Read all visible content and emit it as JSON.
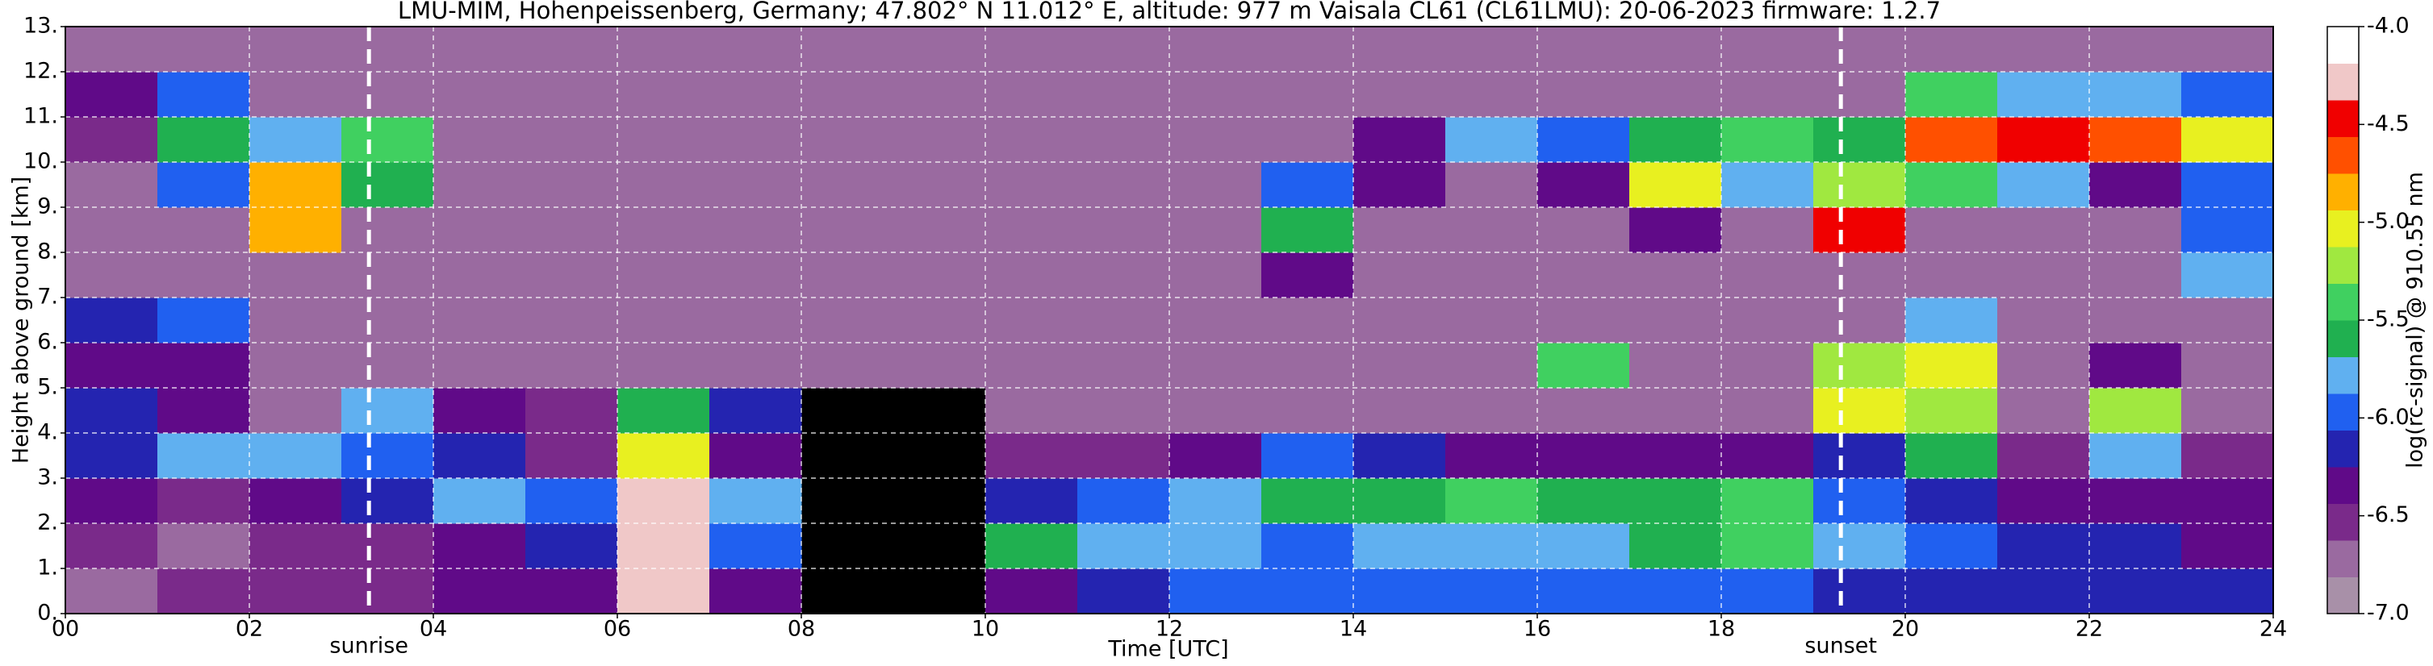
{
  "chart_data": {
    "type": "heatmap",
    "title": "LMU-MIM, Hohenpeissenberg, Germany; 47.802° N 11.012° E, altitude: 977 m    Vaisala CL61 (CL61LMU): 20-06-2023    firmware: 1.2.7",
    "xlabel": "Time [UTC]",
    "ylabel": "Height above ground [km]",
    "colorbar_label": "log(rc-signal) @ 910.55 nm",
    "xlim": [
      0,
      24
    ],
    "ylim": [
      0,
      13
    ],
    "clim": [
      -7,
      -4
    ],
    "xbins": [
      0,
      1,
      2,
      3,
      4,
      5,
      6,
      7,
      8,
      9,
      10,
      11,
      12,
      13,
      14,
      15,
      16,
      17,
      18,
      19,
      20,
      21,
      22,
      23,
      24
    ],
    "ybins": [
      0,
      1,
      2,
      3,
      4,
      5,
      6,
      7,
      8,
      9,
      10,
      11,
      12,
      13
    ],
    "xticks": [
      {
        "value": 0,
        "label": "00"
      },
      {
        "value": 2,
        "label": "02"
      },
      {
        "value": 4,
        "label": "04"
      },
      {
        "value": 6,
        "label": "06"
      },
      {
        "value": 8,
        "label": "08"
      },
      {
        "value": 10,
        "label": "10"
      },
      12,
      14,
      16,
      18,
      20,
      22,
      24
    ],
    "yticks": [
      {
        "value": 0,
        "label": "0."
      },
      {
        "value": 1,
        "label": "1."
      },
      {
        "value": 2,
        "label": "2."
      },
      {
        "value": 3,
        "label": "3."
      },
      {
        "value": 4,
        "label": "4."
      },
      {
        "value": 5,
        "label": "5."
      },
      {
        "value": 6,
        "label": "6."
      },
      {
        "value": 7,
        "label": "7."
      },
      {
        "value": 8,
        "label": "8."
      },
      {
        "value": 9,
        "label": "9."
      },
      {
        "value": 10,
        "label": "10."
      },
      {
        "value": 11,
        "label": "11."
      },
      {
        "value": 12,
        "label": "12."
      },
      {
        "value": 13,
        "label": "13."
      }
    ],
    "cticks": [
      {
        "value": -4,
        "label": "-4.0"
      },
      {
        "value": -4.5,
        "label": "-4.5"
      },
      {
        "value": -5,
        "label": "-5.0"
      },
      {
        "value": -5.5,
        "label": "-5.5"
      },
      {
        "value": -6,
        "label": "-6.0"
      },
      {
        "value": -6.5,
        "label": "-6.5"
      },
      {
        "value": -7,
        "label": "-7.0"
      }
    ],
    "grid": true,
    "colorscale": [
      "#a890a8",
      "#9a6aa0",
      "#7a2a8a",
      "#600a88",
      "#2424b0",
      "#2060f0",
      "#60b0f0",
      "#20b050",
      "#40d060",
      "#a0e840",
      "#e8f020",
      "#ffb000",
      "#ff5000",
      "#f00000",
      "#f0c8c8",
      "#ffffff"
    ],
    "annotations": [
      {
        "text": "sunrise",
        "x": 3.3
      },
      {
        "text": "sunset",
        "x": 19.3
      }
    ],
    "z": [
      [
        -6.7,
        -6.6,
        -6.6,
        -6.5,
        -6.4,
        -6.3,
        -4.3,
        -6.3,
        null,
        null,
        -6.3,
        -6.2,
        -6.0,
        -5.9,
        -5.9,
        -5.9,
        -6.0,
        -6.0,
        -6.0,
        -6.1,
        -6.1,
        -6.1,
        -6.2,
        -6.2
      ],
      [
        -6.6,
        -6.7,
        -6.6,
        -6.5,
        -6.4,
        -6.2,
        -4.2,
        -6.0,
        null,
        null,
        -5.6,
        -5.7,
        -5.8,
        -5.9,
        -5.8,
        -5.8,
        -5.7,
        -5.6,
        -5.5,
        -5.8,
        -6.0,
        -6.1,
        -6.2,
        -6.3
      ],
      [
        -6.4,
        -6.5,
        -6.3,
        -6.2,
        -5.8,
        -5.9,
        -4.3,
        -5.8,
        null,
        null,
        -6.2,
        -5.9,
        -5.8,
        -5.6,
        -5.6,
        -5.5,
        -5.6,
        -5.6,
        -5.5,
        -6.0,
        -6.2,
        -6.4,
        -6.3,
        -6.4
      ],
      [
        -6.1,
        -5.7,
        -5.8,
        -6.0,
        -6.1,
        -6.6,
        -5.0,
        -6.3,
        null,
        null,
        -6.6,
        -6.5,
        -6.3,
        -6.0,
        -6.1,
        -6.3,
        -6.4,
        -6.4,
        -6.3,
        -6.1,
        -5.6,
        -6.5,
        -5.8,
        -6.5
      ],
      [
        -6.2,
        -6.4,
        -6.7,
        -5.8,
        -6.3,
        -6.5,
        -5.6,
        -6.2,
        null,
        null,
        -6.7,
        -6.7,
        -6.7,
        -6.7,
        -6.7,
        -6.7,
        -6.7,
        -6.7,
        -6.7,
        -5.0,
        -5.2,
        -6.7,
        -5.3,
        -6.7
      ],
      [
        -6.4,
        -6.3,
        -6.7,
        -6.7,
        -6.7,
        -6.7,
        -6.7,
        -6.7,
        -6.8,
        -6.8,
        -6.7,
        -6.7,
        -6.7,
        -6.7,
        -6.7,
        -6.7,
        -5.5,
        -6.7,
        -6.7,
        -5.2,
        -5.0,
        -6.7,
        -6.4,
        -6.7
      ],
      [
        -6.2,
        -6.0,
        -6.7,
        -6.7,
        -6.7,
        -6.7,
        -6.7,
        -6.7,
        -6.8,
        -6.8,
        -6.7,
        -6.7,
        -6.7,
        -6.7,
        -6.7,
        -6.7,
        -6.7,
        -6.7,
        -6.7,
        -6.7,
        -5.8,
        -6.7,
        -6.7,
        -6.7
      ],
      [
        -6.7,
        -6.7,
        -6.7,
        -6.7,
        -6.7,
        -6.7,
        -6.7,
        -6.7,
        -6.8,
        -6.8,
        -6.7,
        -6.7,
        -6.7,
        -6.3,
        -6.7,
        -6.7,
        -6.7,
        -6.7,
        -6.7,
        -6.7,
        -6.7,
        -6.7,
        -6.7,
        -5.7
      ],
      [
        -6.7,
        -6.7,
        -4.9,
        -6.7,
        -6.7,
        -6.7,
        -6.7,
        -6.7,
        -6.8,
        -6.8,
        -6.7,
        -6.7,
        -6.7,
        -5.6,
        -6.7,
        -6.7,
        -6.7,
        -6.3,
        -6.7,
        -4.5,
        -6.7,
        -6.7,
        -6.7,
        -5.9
      ],
      [
        -6.7,
        -5.9,
        -4.9,
        -5.6,
        -6.7,
        -6.7,
        -6.7,
        -6.7,
        -6.8,
        -6.8,
        -6.7,
        -6.7,
        -6.7,
        -6.0,
        -6.4,
        -6.7,
        -6.3,
        -5.0,
        -5.7,
        -5.3,
        -5.5,
        -5.8,
        -6.3,
        -6.0
      ],
      [
        -6.6,
        -5.6,
        -5.8,
        -5.4,
        -6.7,
        -6.7,
        -6.7,
        -6.7,
        -6.8,
        -6.8,
        -6.7,
        -6.7,
        -6.7,
        -6.7,
        -6.3,
        -5.8,
        -6.0,
        -5.6,
        -5.5,
        -5.6,
        -4.6,
        -4.5,
        -4.6,
        -5.0
      ],
      [
        -6.4,
        -6.0,
        -6.7,
        -6.7,
        -6.7,
        -6.7,
        -6.7,
        -6.7,
        -6.8,
        -6.8,
        -6.7,
        -6.7,
        -6.7,
        -6.7,
        -6.7,
        -6.7,
        -6.7,
        -6.7,
        -6.7,
        -6.7,
        -5.5,
        -5.8,
        -5.7,
        -5.9
      ],
      [
        -6.7,
        -6.7,
        -6.7,
        -6.7,
        -6.7,
        -6.7,
        -6.7,
        -6.7,
        -6.8,
        -6.8,
        -6.7,
        -6.7,
        -6.7,
        -6.7,
        -6.7,
        -6.7,
        -6.7,
        -6.7,
        -6.7,
        -6.7,
        -6.7,
        -6.7,
        -6.7,
        -6.7
      ]
    ]
  }
}
